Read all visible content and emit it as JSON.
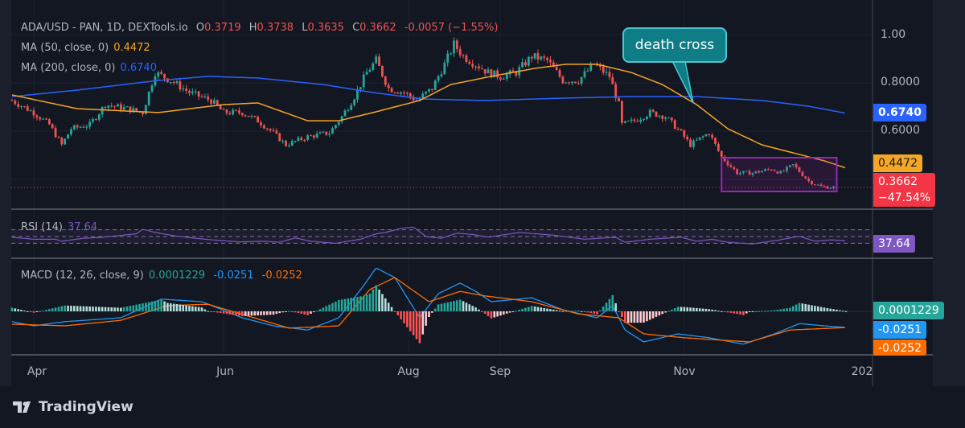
{
  "header": {
    "symbol": "ADA/USD - PAN, 1D, DEXTools.io",
    "o_label": "O",
    "o": "0.3719",
    "h_label": "H",
    "h": "0.3738",
    "l_label": "L",
    "l": "0.3635",
    "c_label": "C",
    "c": "0.3662",
    "change": "-0.0057 (−1.55%)",
    "ma50_label": "MA (50, close, 0)",
    "ma50_value": "0.4472",
    "ma200_label": "MA (200, close, 0)",
    "ma200_value": "0.6740",
    "rsi_label": "RSI (14)",
    "rsi_value": "37.64",
    "macd_label": "MACD (12, 26, close, 9)",
    "macd_hist": "0.0001229",
    "macd_value": "-0.0251",
    "macd_signal": "-0.0252"
  },
  "price_axis": {
    "ticks": [
      "1.00",
      "0.8000",
      "0.6000"
    ],
    "tag_ma200": "0.6740",
    "tag_ma50": "0.4472",
    "tag_close": "0.3662",
    "tag_change": "−47.54%",
    "tag_rsi": "37.64",
    "tag_hist": "0.0001229",
    "tag_macd": "-0.0251",
    "tag_signal": "-0.0252"
  },
  "time_axis": {
    "labels": [
      "Apr",
      "Jun",
      "Aug",
      "Sep",
      "Nov",
      "202"
    ]
  },
  "annotation": {
    "callout": "death cross"
  },
  "branding": {
    "logo": "TradingView"
  },
  "colors": {
    "background": "#131722",
    "up": "#26a69a",
    "down": "#ef5350",
    "ma50": "#f5a623",
    "ma200": "#2962ff",
    "rsi": "#7e57c2",
    "macd": "#2196f3",
    "signal": "#ff6d00",
    "box": "#9c27b0",
    "callout": "#0f7d86"
  },
  "chart_data": {
    "type": "candlestick",
    "title": "ADA/USD - PAN, 1D, DEXTools.io",
    "ylim": [
      0.33,
      1.05
    ],
    "xlim": [
      "2023-03-25",
      "2023-12-20"
    ],
    "close_path": [
      [
        "2023-03-25",
        0.727
      ],
      [
        "2023-04-01",
        0.677
      ],
      [
        "2023-04-06",
        0.627
      ],
      [
        "2023-04-10",
        0.543
      ],
      [
        "2023-04-13",
        0.61
      ],
      [
        "2023-04-19",
        0.627
      ],
      [
        "2023-04-24",
        0.71
      ],
      [
        "2023-05-01",
        0.693
      ],
      [
        "2023-05-06",
        0.677
      ],
      [
        "2023-05-10",
        0.843
      ],
      [
        "2023-05-15",
        0.81
      ],
      [
        "2023-05-21",
        0.76
      ],
      [
        "2023-05-28",
        0.727
      ],
      [
        "2023-06-01",
        0.677
      ],
      [
        "2023-06-07",
        0.677
      ],
      [
        "2023-06-12",
        0.643
      ],
      [
        "2023-06-17",
        0.593
      ],
      [
        "2023-06-21",
        0.543
      ],
      [
        "2023-06-28",
        0.577
      ],
      [
        "2023-07-05",
        0.593
      ],
      [
        "2023-07-09",
        0.66
      ],
      [
        "2023-07-13",
        0.743
      ],
      [
        "2023-07-17",
        0.843
      ],
      [
        "2023-07-20",
        0.893
      ],
      [
        "2023-07-24",
        0.777
      ],
      [
        "2023-07-29",
        0.76
      ],
      [
        "2023-08-02",
        0.727
      ],
      [
        "2023-08-07",
        0.777
      ],
      [
        "2023-08-11",
        0.877
      ],
      [
        "2023-08-14",
        0.96
      ],
      [
        "2023-08-17",
        0.91
      ],
      [
        "2023-08-21",
        0.877
      ],
      [
        "2023-08-25",
        0.843
      ],
      [
        "2023-08-29",
        0.827
      ],
      [
        "2023-09-03",
        0.843
      ],
      [
        "2023-09-08",
        0.91
      ],
      [
        "2023-09-13",
        0.893
      ],
      [
        "2023-09-18",
        0.81
      ],
      [
        "2023-09-23",
        0.81
      ],
      [
        "2023-09-28",
        0.877
      ],
      [
        "2023-10-03",
        0.827
      ],
      [
        "2023-10-06",
        0.71
      ],
      [
        "2023-10-07",
        0.627
      ],
      [
        "2023-10-11",
        0.643
      ],
      [
        "2023-10-16",
        0.677
      ],
      [
        "2023-10-21",
        0.66
      ],
      [
        "2023-10-26",
        0.593
      ],
      [
        "2023-10-29",
        0.543
      ],
      [
        "2023-11-02",
        0.577
      ],
      [
        "2023-11-04",
        0.593
      ],
      [
        "2023-11-08",
        0.493
      ],
      [
        "2023-11-13",
        0.427
      ],
      [
        "2023-11-18",
        0.427
      ],
      [
        "2023-11-24",
        0.443
      ],
      [
        "2023-11-27",
        0.427
      ],
      [
        "2023-12-01",
        0.46
      ],
      [
        "2023-12-06",
        0.393
      ],
      [
        "2023-12-10",
        0.37
      ],
      [
        "2023-12-15",
        0.3662
      ]
    ],
    "ma50": [
      [
        "2023-03-25",
        0.75
      ],
      [
        "2023-04-15",
        0.693
      ],
      [
        "2023-05-11",
        0.677
      ],
      [
        "2023-06-01",
        0.71
      ],
      [
        "2023-06-12",
        0.717
      ],
      [
        "2023-06-28",
        0.643
      ],
      [
        "2023-07-08",
        0.643
      ],
      [
        "2023-07-19",
        0.677
      ],
      [
        "2023-08-03",
        0.727
      ],
      [
        "2023-08-13",
        0.793
      ],
      [
        "2023-08-26",
        0.827
      ],
      [
        "2023-09-09",
        0.86
      ],
      [
        "2023-09-19",
        0.877
      ],
      [
        "2023-09-29",
        0.877
      ],
      [
        "2023-10-10",
        0.843
      ],
      [
        "2023-10-20",
        0.793
      ],
      [
        "2023-10-31",
        0.71
      ],
      [
        "2023-11-10",
        0.61
      ],
      [
        "2023-11-21",
        0.543
      ],
      [
        "2023-12-01",
        0.51
      ],
      [
        "2023-12-11",
        0.477
      ],
      [
        "2023-12-18",
        0.4472
      ]
    ],
    "ma200": [
      [
        "2023-03-25",
        0.743
      ],
      [
        "2023-04-15",
        0.77
      ],
      [
        "2023-05-11",
        0.81
      ],
      [
        "2023-05-27",
        0.827
      ],
      [
        "2023-06-12",
        0.82
      ],
      [
        "2023-07-03",
        0.793
      ],
      [
        "2023-07-19",
        0.76
      ],
      [
        "2023-08-04",
        0.733
      ],
      [
        "2023-08-24",
        0.727
      ],
      [
        "2023-09-19",
        0.737
      ],
      [
        "2023-10-09",
        0.743
      ],
      [
        "2023-10-31",
        0.743
      ],
      [
        "2023-11-21",
        0.727
      ],
      [
        "2023-12-06",
        0.703
      ],
      [
        "2023-12-18",
        0.674
      ]
    ],
    "rsi": {
      "levels": [
        70,
        50,
        30
      ],
      "values": [
        [
          "2023-03-25",
          48
        ],
        [
          "2023-04-01",
          42
        ],
        [
          "2023-04-08",
          42
        ],
        [
          "2023-04-10",
          36
        ],
        [
          "2023-04-17",
          45
        ],
        [
          "2023-04-22",
          47
        ],
        [
          "2023-05-04",
          58
        ],
        [
          "2023-05-06",
          72
        ],
        [
          "2023-05-10",
          62
        ],
        [
          "2023-05-17",
          51
        ],
        [
          "2023-05-26",
          42
        ],
        [
          "2023-06-06",
          34
        ],
        [
          "2023-06-14",
          36
        ],
        [
          "2023-06-19",
          33
        ],
        [
          "2023-06-24",
          46
        ],
        [
          "2023-06-29",
          36
        ],
        [
          "2023-07-07",
          30
        ],
        [
          "2023-07-15",
          42
        ],
        [
          "2023-07-20",
          58
        ],
        [
          "2023-07-23",
          62
        ],
        [
          "2023-07-28",
          74
        ],
        [
          "2023-08-01",
          78
        ],
        [
          "2023-08-05",
          50
        ],
        [
          "2023-08-10",
          45
        ],
        [
          "2023-08-15",
          60
        ],
        [
          "2023-08-20",
          56
        ],
        [
          "2023-08-25",
          48
        ],
        [
          "2023-09-04",
          62
        ],
        [
          "2023-09-15",
          54
        ],
        [
          "2023-09-25",
          42
        ],
        [
          "2023-10-05",
          48
        ],
        [
          "2023-10-08",
          33
        ],
        [
          "2023-10-16",
          42
        ],
        [
          "2023-10-26",
          48
        ],
        [
          "2023-10-31",
          36
        ],
        [
          "2023-11-05",
          42
        ],
        [
          "2023-11-10",
          33
        ],
        [
          "2023-11-18",
          28
        ],
        [
          "2023-11-26",
          39
        ],
        [
          "2023-12-03",
          51
        ],
        [
          "2023-12-08",
          36
        ],
        [
          "2023-12-13",
          40
        ],
        [
          "2023-12-18",
          37.64
        ]
      ]
    },
    "macd": {
      "macd": [
        [
          "2023-03-25",
          -0.016
        ],
        [
          "2023-04-01",
          -0.0225
        ],
        [
          "2023-04-11",
          -0.016
        ],
        [
          "2023-04-29",
          -0.01
        ],
        [
          "2023-05-12",
          0.019
        ],
        [
          "2023-05-25",
          0.015
        ],
        [
          "2023-06-07",
          -0.01
        ],
        [
          "2023-06-17",
          -0.0225
        ],
        [
          "2023-06-28",
          -0.029
        ],
        [
          "2023-07-08",
          -0.01
        ],
        [
          "2023-07-16",
          0.04
        ],
        [
          "2023-07-20",
          0.0675
        ],
        [
          "2023-07-26",
          0.0525
        ],
        [
          "2023-08-03",
          -0.01
        ],
        [
          "2023-08-09",
          0.0275
        ],
        [
          "2023-08-16",
          0.044
        ],
        [
          "2023-08-21",
          0.031
        ],
        [
          "2023-08-26",
          0.015
        ],
        [
          "2023-09-08",
          0.021
        ],
        [
          "2023-09-18",
          0.0025
        ],
        [
          "2023-09-29",
          -0.01
        ],
        [
          "2023-10-04",
          0.009
        ],
        [
          "2023-10-08",
          -0.029
        ],
        [
          "2023-10-14",
          -0.0475
        ],
        [
          "2023-10-25",
          -0.035
        ],
        [
          "2023-11-04",
          -0.041
        ],
        [
          "2023-11-15",
          -0.051
        ],
        [
          "2023-11-25",
          -0.035
        ],
        [
          "2023-12-03",
          -0.019
        ],
        [
          "2023-12-11",
          -0.0225
        ],
        [
          "2023-12-18",
          -0.0251
        ]
      ],
      "signal": [
        [
          "2023-03-25",
          -0.02
        ],
        [
          "2023-04-11",
          -0.0225
        ],
        [
          "2023-04-29",
          -0.014
        ],
        [
          "2023-05-14",
          0.009
        ],
        [
          "2023-05-27",
          0.011
        ],
        [
          "2023-06-09",
          -0.0075
        ],
        [
          "2023-06-22",
          -0.026
        ],
        [
          "2023-07-08",
          -0.0225
        ],
        [
          "2023-07-18",
          0.034
        ],
        [
          "2023-07-26",
          0.0525
        ],
        [
          "2023-08-06",
          0.015
        ],
        [
          "2023-08-16",
          0.031
        ],
        [
          "2023-08-24",
          0.024
        ],
        [
          "2023-09-08",
          0.015
        ],
        [
          "2023-09-23",
          -0.004
        ],
        [
          "2023-10-06",
          -0.01
        ],
        [
          "2023-10-14",
          -0.035
        ],
        [
          "2023-10-27",
          -0.041
        ],
        [
          "2023-11-17",
          -0.0475
        ],
        [
          "2023-11-30",
          -0.029
        ],
        [
          "2023-12-18",
          -0.0252
        ]
      ],
      "zero": 0
    },
    "annotations": [
      {
        "type": "callout",
        "text": "death cross",
        "points_to": "2023-10-29"
      },
      {
        "type": "rectangle",
        "from": [
          "2023-11-08",
          0.49
        ],
        "to": [
          "2023-12-15",
          0.35
        ]
      }
    ]
  }
}
